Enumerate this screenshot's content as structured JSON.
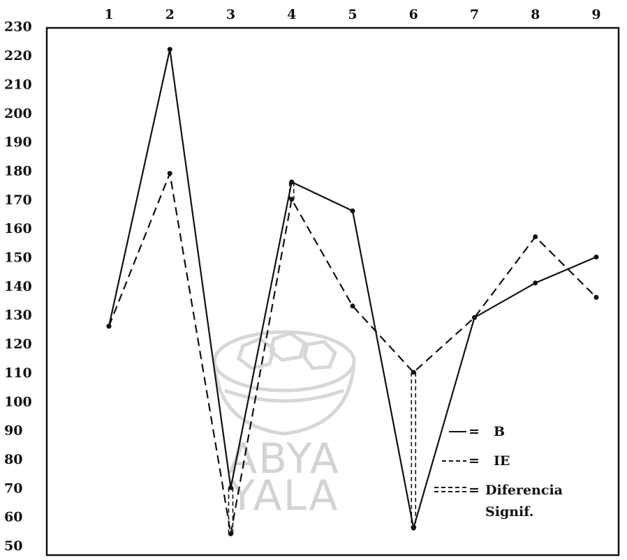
{
  "chart_data": {
    "type": "line",
    "x": [
      1,
      2,
      3,
      4,
      5,
      6,
      7,
      8,
      9
    ],
    "ylim": [
      50,
      230
    ],
    "y_ticks": [
      50,
      60,
      70,
      80,
      90,
      100,
      110,
      120,
      130,
      140,
      150,
      160,
      170,
      180,
      190,
      200,
      210,
      220,
      230
    ],
    "series": [
      {
        "name": "B",
        "style": "solid",
        "values": [
          126,
          222,
          70,
          176,
          166,
          56,
          129,
          141,
          150
        ]
      },
      {
        "name": "IE",
        "style": "dashed",
        "values": [
          126,
          179,
          54,
          170,
          133,
          110,
          129,
          157,
          136
        ]
      }
    ],
    "significance": [
      {
        "x": 3,
        "from": 70,
        "to": 54
      },
      {
        "x": 4,
        "from": 176,
        "to": 170
      },
      {
        "x": 6,
        "from": 110,
        "to": 56
      }
    ],
    "legend": [
      {
        "symbol": "— =",
        "label": "B"
      },
      {
        "symbol": "- - - =",
        "label": "IE"
      },
      {
        "symbol": "= = = =",
        "label": "Diferencia"
      },
      {
        "symbol": "",
        "label": "Signif."
      }
    ],
    "grid": false
  },
  "watermark": {
    "line1": "ABYA",
    "line2": "YALA"
  }
}
